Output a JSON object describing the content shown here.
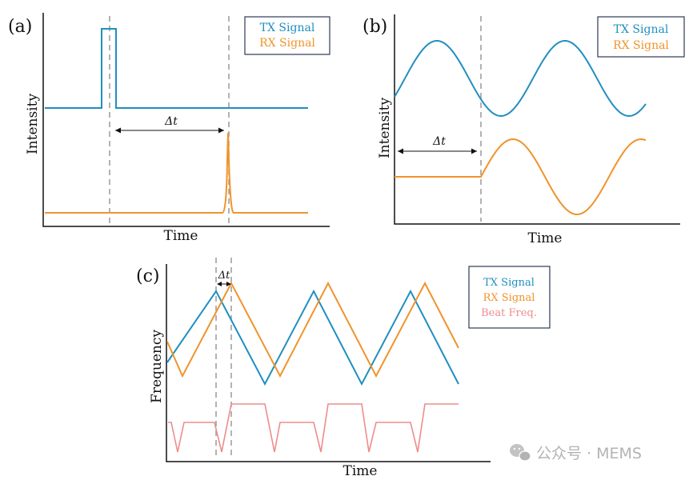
{
  "colors": {
    "tx": "#1f8fc0",
    "rx": "#f0932b",
    "beat": "#ef8c8c",
    "axis": "#111111",
    "dash": "#9a9a9a",
    "legend_border": "#2b3a55"
  },
  "panel_a": {
    "label": "(a)",
    "xlabel": "Time",
    "ylabel": "Intensity",
    "delta": "Δt",
    "legend": [
      "TX Signal",
      "RX Signal"
    ]
  },
  "panel_b": {
    "label": "(b)",
    "xlabel": "Time",
    "ylabel": "Intensity",
    "delta": "Δt",
    "legend": [
      "TX Signal",
      "RX Signal"
    ]
  },
  "panel_c": {
    "label": "(c)",
    "xlabel": "Time",
    "ylabel": "Frequency",
    "delta": "Δt",
    "legend": [
      "TX Signal",
      "RX Signal",
      "Beat Freq."
    ]
  },
  "watermark": {
    "icon": "wechat-icon",
    "text": "公众号 · MEMS"
  }
}
